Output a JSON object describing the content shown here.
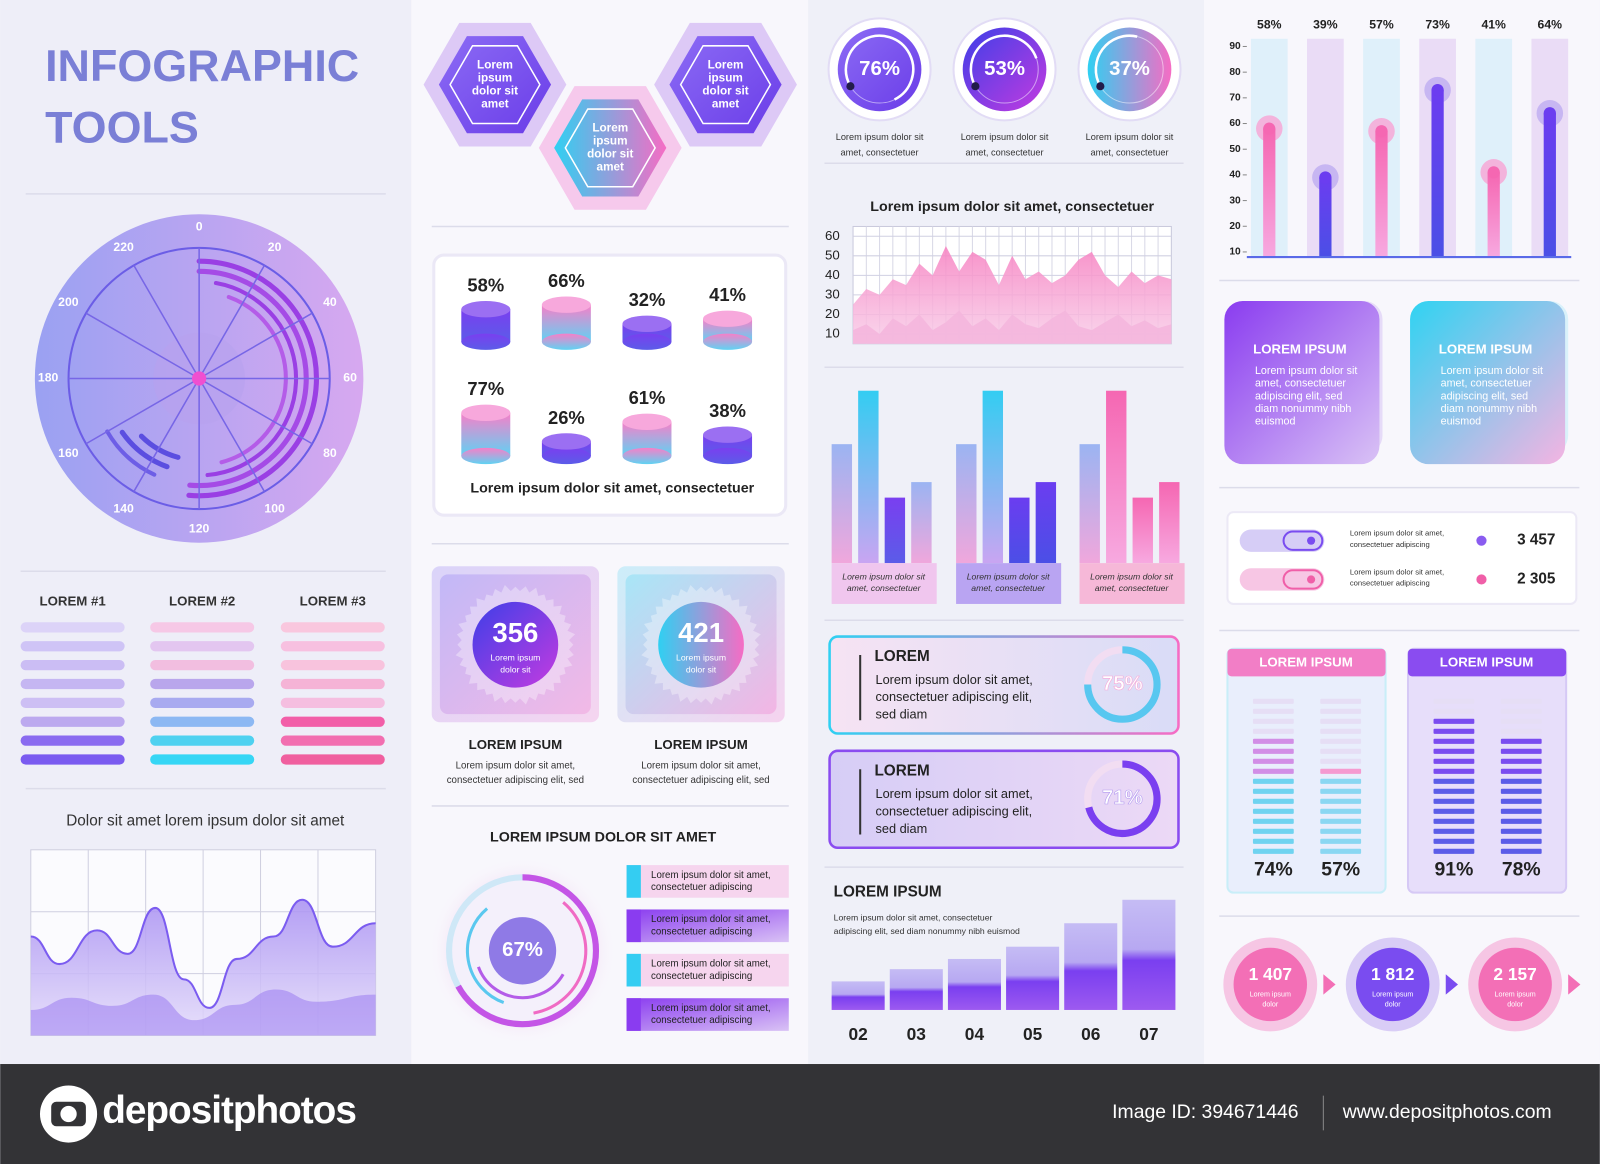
{
  "header": {
    "title_lines": [
      "INFOGRAPHIC",
      "TOOLS"
    ]
  },
  "dial": {
    "ticks": [
      0,
      20,
      40,
      60,
      80,
      100,
      120,
      140,
      160,
      180,
      200,
      220
    ]
  },
  "stripe_columns": {
    "headers": [
      "LOREM #1",
      "LOREM #2",
      "LOREM #3"
    ]
  },
  "wave_chart": {
    "title": "Dolor sit amet lorem ipsum dolor sit amet"
  },
  "hexagons": [
    {
      "lines": [
        "Lorem",
        "ipsum",
        "dolor sit",
        "amet"
      ]
    },
    {
      "lines": [
        "Lorem",
        "ipsum",
        "dolor sit",
        "amet"
      ]
    },
    {
      "lines": [
        "Lorem",
        "ipsum",
        "dolor sit",
        "amet"
      ]
    }
  ],
  "cylinders": {
    "values": [
      58,
      66,
      32,
      41,
      77,
      26,
      61,
      38
    ],
    "value_labels": [
      "58%",
      "66%",
      "32%",
      "41%",
      "77%",
      "26%",
      "61%",
      "38%"
    ],
    "caption": "Lorem ipsum dolor sit amet, consectetuer"
  },
  "badges": [
    {
      "value": "356",
      "sub_lines": [
        "Lorem ipsum",
        "dolor sit"
      ],
      "title": "LOREM IPSUM",
      "text_lines": [
        "Lorem ipsum dolor sit amet,",
        "consectetuer adipiscing elit, sed"
      ]
    },
    {
      "value": "421",
      "sub_lines": [
        "Lorem ipsum",
        "dolor sit"
      ],
      "title": "LOREM IPSUM",
      "text_lines": [
        "Lorem ipsum dolor sit amet,",
        "consectetuer adipiscing elit, sed"
      ]
    }
  ],
  "donut": {
    "title": "LOREM IPSUM DOLOR SIT AMET",
    "value": 67,
    "value_label": "67%",
    "legend": [
      {
        "lines": [
          "Lorem ipsum dolor sit amet,",
          "consectetuer adipiscing"
        ]
      },
      {
        "lines": [
          "Lorem ipsum dolor sit amet,",
          "consectetuer adipiscing"
        ]
      },
      {
        "lines": [
          "Lorem ipsum dolor sit amet,",
          "consectetuer adipiscing"
        ]
      },
      {
        "lines": [
          "Lorem ipsum dolor sit amet,",
          "consectetuer adipiscing"
        ]
      }
    ]
  },
  "rings": [
    {
      "value": 76,
      "value_label": "76%",
      "caption_lines": [
        "Lorem ipsum dolor sit",
        "amet, consectetuer"
      ]
    },
    {
      "value": 53,
      "value_label": "53%",
      "caption_lines": [
        "Lorem ipsum dolor sit",
        "amet, consectetuer"
      ]
    },
    {
      "value": 37,
      "value_label": "37%",
      "caption_lines": [
        "Lorem ipsum dolor sit",
        "amet, consectetuer"
      ]
    }
  ],
  "area_chart": {
    "type": "area",
    "title": "Lorem ipsum dolor sit amet, consectetuer",
    "ylim": [
      5,
      65
    ],
    "yticks": [
      10,
      20,
      30,
      40,
      50,
      60
    ],
    "series": [
      {
        "color": "#f78fc8",
        "values": [
          25,
          33,
          30,
          38,
          35,
          46,
          40,
          55,
          42,
          52,
          48,
          35,
          50,
          38,
          42,
          36,
          40,
          48,
          52,
          40,
          34,
          42,
          36,
          40,
          38
        ]
      },
      {
        "color": "#f4b6dd",
        "values": [
          12,
          15,
          10,
          18,
          14,
          20,
          12,
          16,
          22,
          14,
          18,
          12,
          20,
          15,
          13,
          18,
          22,
          14,
          12,
          16,
          20,
          14,
          17,
          13,
          15
        ]
      }
    ]
  },
  "grouped_bars": {
    "groups": [
      {
        "values": [
          69,
          100,
          38,
          47
        ],
        "caption_lines": [
          "Lorem ipsum dolor sit",
          "amet, consectetuer"
        ]
      },
      {
        "values": [
          69,
          100,
          38,
          47
        ],
        "caption_lines": [
          "Lorem ipsum dolor sit",
          "amet, consectetuer"
        ]
      },
      {
        "values": [
          69,
          100,
          38,
          47
        ],
        "caption_lines": [
          "Lorem ipsum dolor sit",
          "amet, consectetuer"
        ]
      }
    ]
  },
  "progress_cards": [
    {
      "title": "LOREM",
      "text_lines": [
        "Lorem ipsum dolor sit amet,",
        "consectetuer adipiscing elit,",
        "sed diam"
      ],
      "value": 75,
      "value_label": "75%"
    },
    {
      "title": "LOREM",
      "text_lines": [
        "Lorem ipsum dolor sit amet,",
        "consectetuer adipiscing elit,",
        "sed diam"
      ],
      "value": 71,
      "value_label": "71%"
    }
  ],
  "growth": {
    "title": "LOREM IPSUM",
    "text_lines": [
      "Lorem ipsum dolor sit amet, consectetuer",
      "adipiscing elit, sed diam nonummy nibh euismod"
    ],
    "categories": [
      "02",
      "03",
      "04",
      "05",
      "06",
      "07"
    ],
    "values": [
      28,
      40,
      50,
      62,
      85,
      108
    ]
  },
  "vbar_chart": {
    "type": "bar",
    "ylim": [
      8,
      93
    ],
    "yticks": [
      10,
      20,
      30,
      40,
      50,
      60,
      70,
      80,
      90
    ],
    "values": [
      58,
      39,
      57,
      73,
      41,
      64
    ],
    "value_labels": [
      "58%",
      "39%",
      "57%",
      "73%",
      "41%",
      "64%"
    ]
  },
  "info_cards": [
    {
      "title": "LOREM IPSUM",
      "text_lines": [
        "Lorem ipsum dolor sit",
        "amet, consectetuer",
        "adipiscing elit, sed",
        "diam nonummy nibh",
        "euismod"
      ]
    },
    {
      "title": "LOREM IPSUM",
      "text_lines": [
        "Lorem ipsum dolor sit",
        "amet, consectetuer",
        "adipiscing elit, sed",
        "diam nonummy nibh",
        "euismod"
      ]
    }
  ],
  "toggles": [
    {
      "text_lines": [
        "Lorem ipsum dolor sit amet,",
        "consectetuer adipiscing"
      ],
      "value": "3 457"
    },
    {
      "text_lines": [
        "Lorem ipsum dolor sit amet,",
        "consectetuer adipiscing"
      ],
      "value": "2 305"
    }
  ],
  "meters": [
    {
      "title": "LOREM IPSUM",
      "values": [
        74,
        57
      ],
      "value_labels": [
        "74%",
        "57%"
      ]
    },
    {
      "title": "LOREM IPSUM",
      "values": [
        91,
        78
      ],
      "value_labels": [
        "91%",
        "78%"
      ]
    }
  ],
  "circles": [
    {
      "value": "1 407",
      "sub_lines": [
        "Lorem ipsum",
        "dolor"
      ]
    },
    {
      "value": "1 812",
      "sub_lines": [
        "Lorem ipsum",
        "dolor"
      ]
    },
    {
      "value": "2 157",
      "sub_lines": [
        "Lorem ipsum",
        "dolor"
      ]
    }
  ],
  "footer": {
    "brand": "depositphotos",
    "image_id": "Image ID: 394671446",
    "site": "www.depositphotos.com"
  }
}
